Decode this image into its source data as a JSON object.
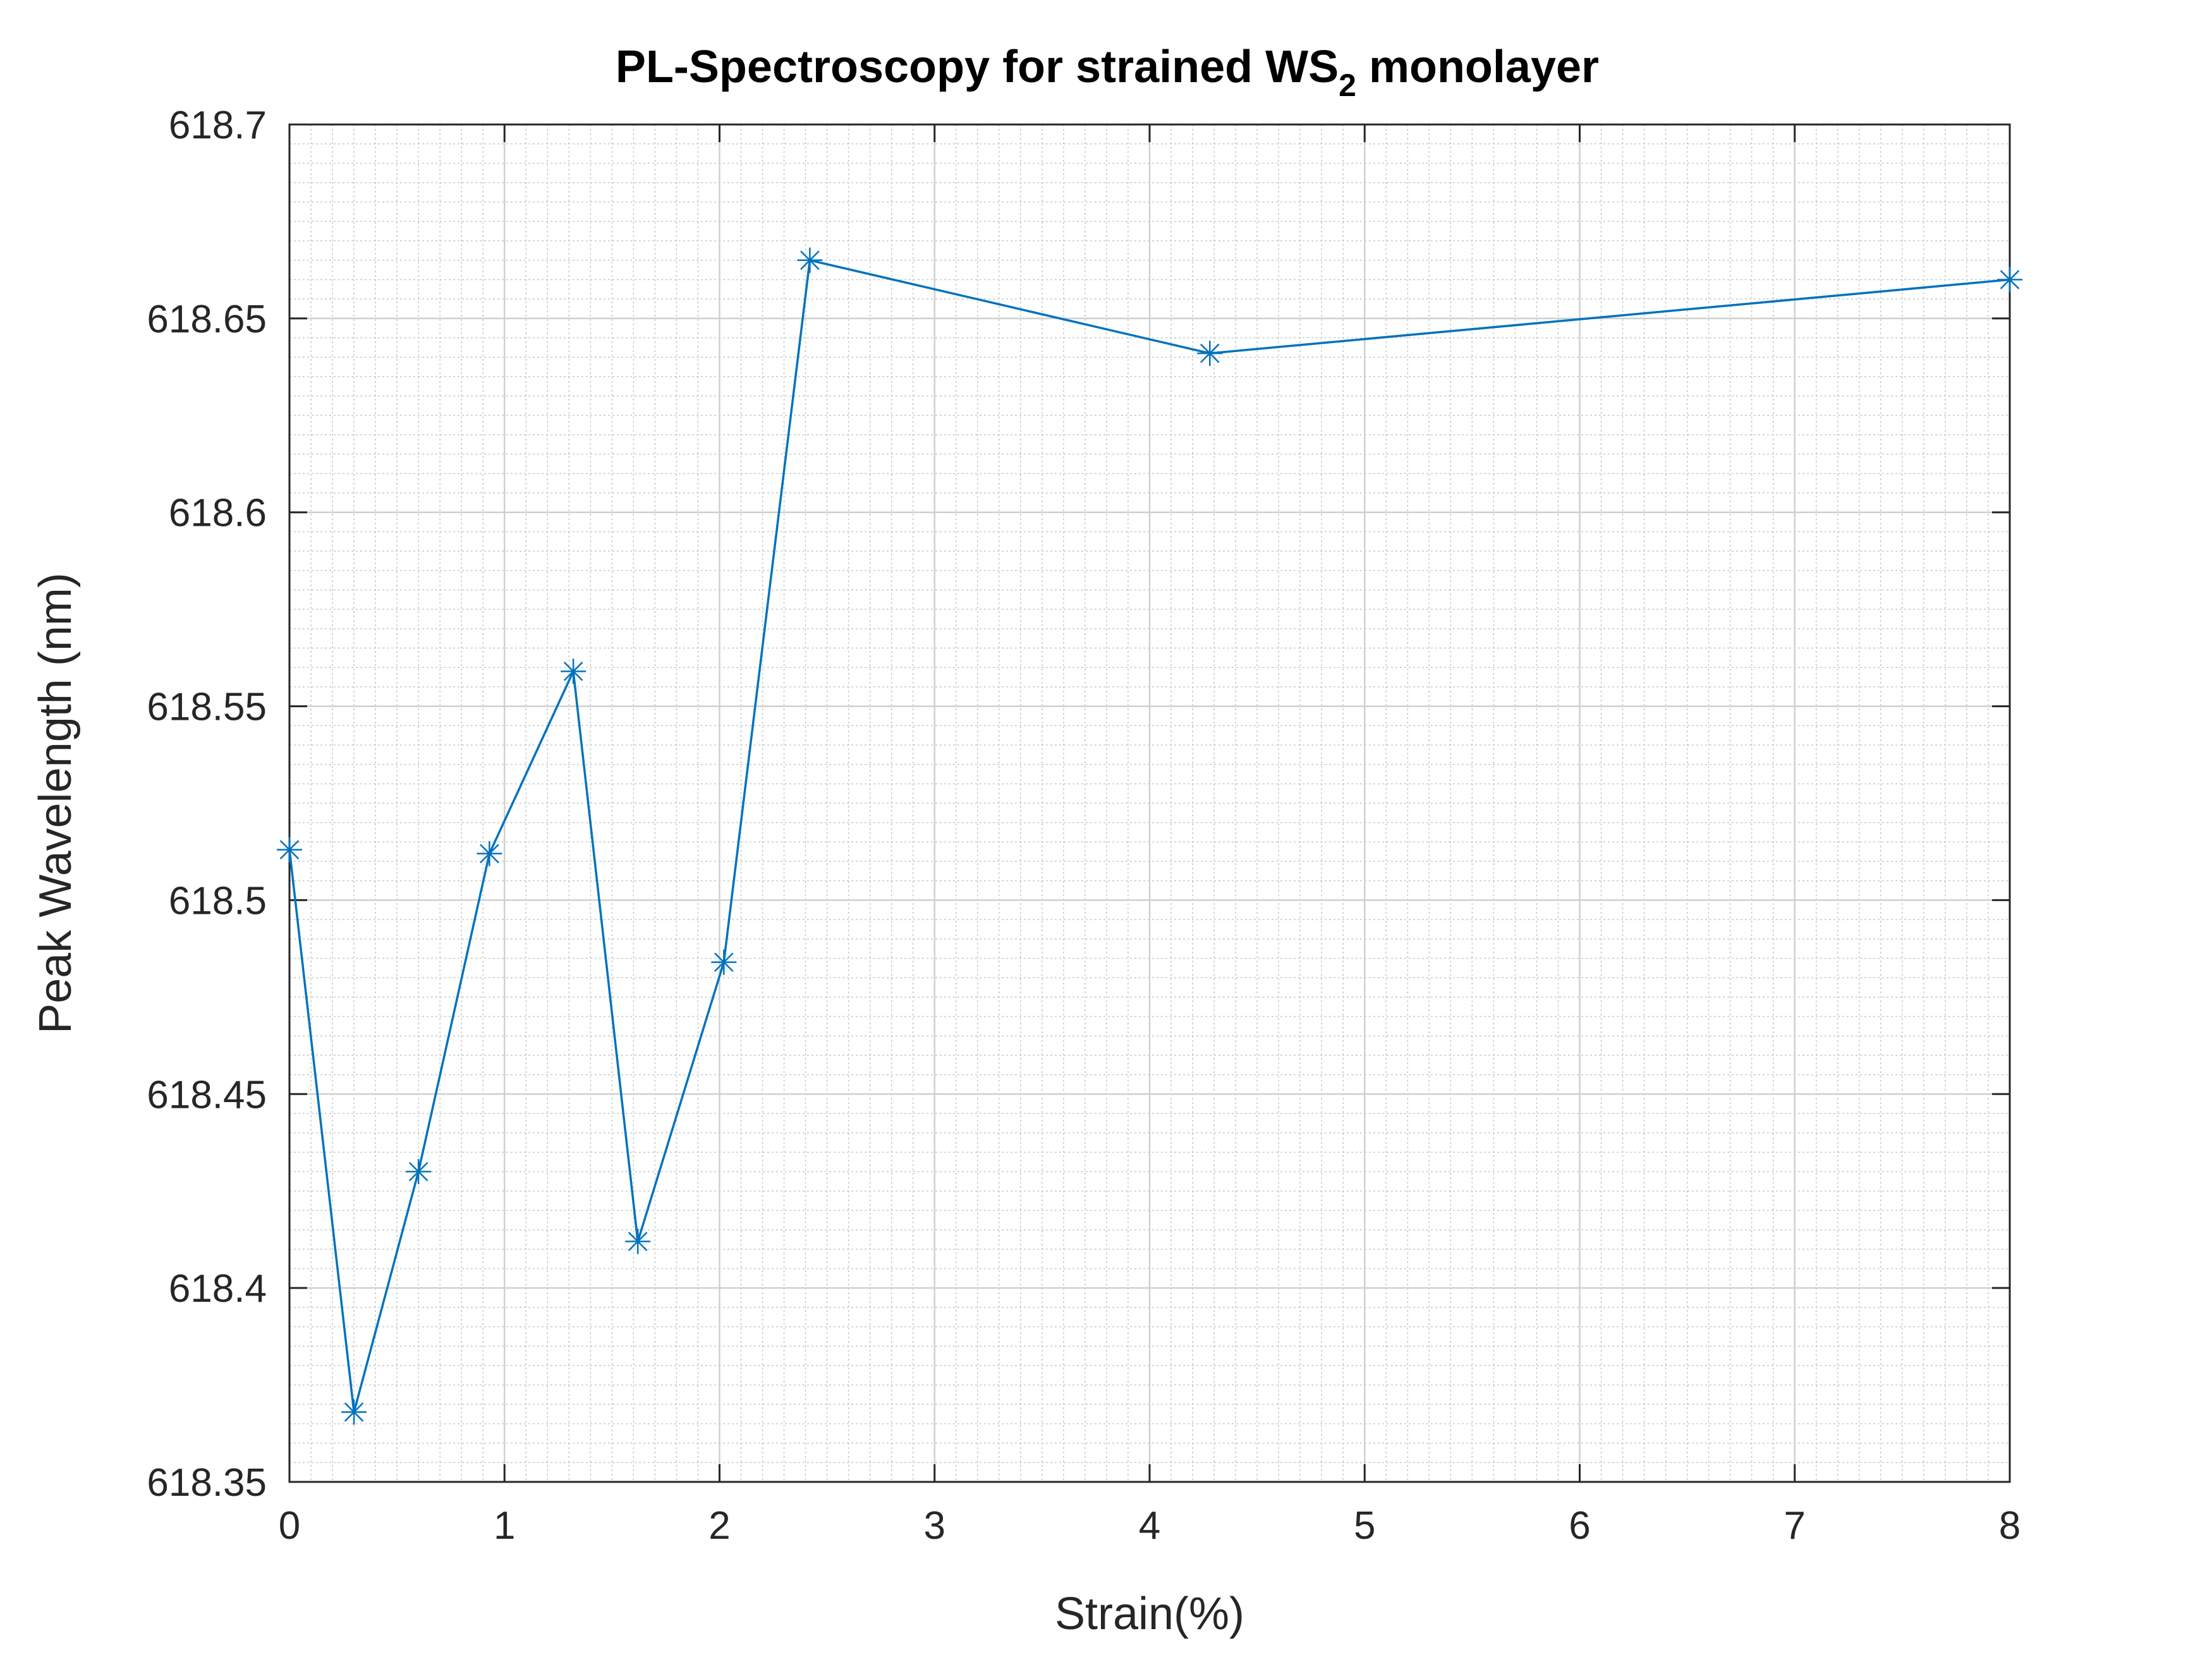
{
  "chart_data": {
    "type": "line",
    "title": "PL-Spectroscopy for strained WS",
    "title_subscript": "2",
    "title_suffix": " monolayer",
    "xlabel": "Strain(%)",
    "ylabel": "Peak Wavelength (nm)",
    "xlim": [
      0,
      8
    ],
    "ylim": [
      618.35,
      618.7
    ],
    "xticks": [
      "0",
      "1",
      "2",
      "3",
      "4",
      "5",
      "6",
      "7",
      "8"
    ],
    "yticks": [
      "618.35",
      "618.4",
      "618.45",
      "618.5",
      "618.55",
      "618.6",
      "618.65",
      "618.7"
    ],
    "grid": "major and minor",
    "marker": "asterisk",
    "series": [
      {
        "color": "#0072BD",
        "x": [
          0,
          0.3,
          0.6,
          0.93,
          1.32,
          1.62,
          2.02,
          2.42,
          4.28,
          8.0
        ],
        "y": [
          618.513,
          618.368,
          618.43,
          618.512,
          618.559,
          618.412,
          618.484,
          618.665,
          618.641,
          618.66
        ]
      }
    ]
  }
}
